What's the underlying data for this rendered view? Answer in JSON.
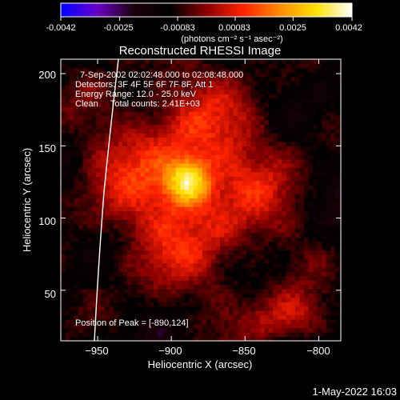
{
  "colorbar": {
    "ticks": [
      "-0.0042",
      "-0.0025",
      "-0.00083",
      "0.00083",
      "0.0025",
      "0.0042"
    ],
    "unit_label": "(photons cm⁻² s⁻¹ asec⁻²)",
    "range": [
      -0.0042,
      0.0042
    ],
    "colors": [
      "#0000ff",
      "#6a00c8",
      "#1a0008",
      "#000000",
      "#8a0000",
      "#ff2200",
      "#ff8a00",
      "#ffe000",
      "#ffffff"
    ]
  },
  "chart_data": {
    "type": "heatmap",
    "title": "Reconstructed RHESSI Image",
    "xlabel": "Heliocentric X (arcsec)",
    "ylabel": "Heliocentric Y (arcsec)",
    "xlim": [
      -975,
      -785
    ],
    "ylim": [
      15,
      210
    ],
    "xticks": [
      -950,
      -900,
      -850,
      -800
    ],
    "xtick_labels": [
      "−950",
      "−900",
      "−850",
      "−800"
    ],
    "yticks": [
      50,
      100,
      150,
      200
    ],
    "ytick_labels": [
      "50",
      "100",
      "150",
      "200"
    ],
    "peak": [
      -890,
      124
    ],
    "annotations": {
      "time_range": "7-Sep-2002 02:02:48.000 to 02:08:48.000",
      "detectors": "Detectors: 3F 4F 5F 6F 7F 8F, Att 1",
      "energy": "Energy Range: 12.0 - 25.0 keV",
      "clean": "Clean     Total counts: 2.41E+03",
      "peak_text": "Position of Peak = [-890,124]"
    }
  },
  "footer": {
    "timestamp": "1-May-2022 16:03"
  }
}
